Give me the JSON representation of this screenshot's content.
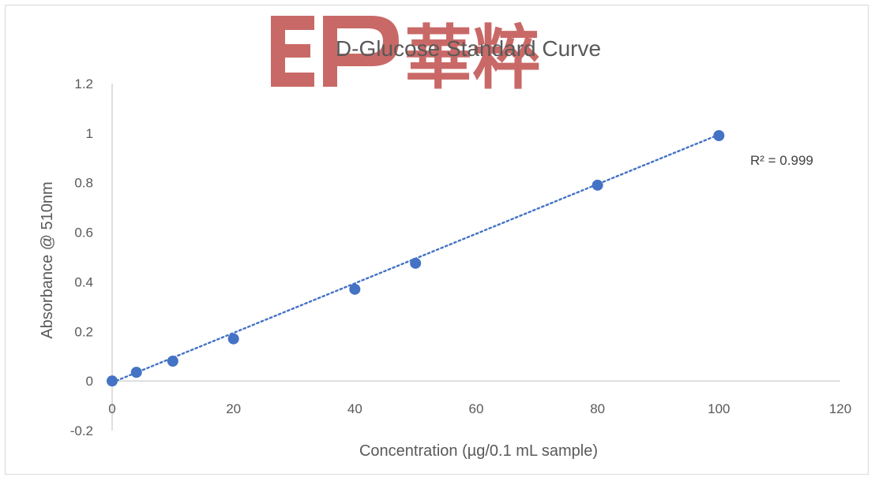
{
  "watermark": {
    "text": "EP 華粹",
    "color": "#c0504d"
  },
  "chart_data": {
    "type": "scatter",
    "title": "D-Glucose Standard Curve",
    "xlabel": "Concentration (µg/0.1 mL sample)",
    "ylabel": "Absorbance @ 510nm",
    "xlim": [
      0,
      120
    ],
    "ylim": [
      -0.2,
      1.2
    ],
    "xticks": [
      0,
      20,
      40,
      60,
      80,
      100,
      120
    ],
    "yticks": [
      -0.2,
      0,
      0.2,
      0.4,
      0.6,
      0.8,
      1,
      1.2
    ],
    "xtick_labels": [
      "0",
      "20",
      "40",
      "60",
      "80",
      "100",
      "120"
    ],
    "ytick_labels": [
      "-0.2",
      "0",
      "0.2",
      "0.4",
      "0.6",
      "0.8",
      "1",
      "1.2"
    ],
    "grid": false,
    "legend": "none",
    "series": [
      {
        "x": [
          0,
          4,
          10,
          20,
          40,
          50,
          80,
          100
        ],
        "y": [
          0,
          0.035,
          0.08,
          0.17,
          0.37,
          0.475,
          0.79,
          0.99
        ],
        "marker_color": "#4472c4"
      }
    ],
    "trendline": {
      "type": "linear",
      "style": "dotted",
      "color": "#4472c4",
      "x": [
        0,
        100
      ],
      "y": [
        -0.006,
        0.994
      ]
    },
    "annotations": [
      {
        "text": "R² = 0.999"
      }
    ]
  }
}
